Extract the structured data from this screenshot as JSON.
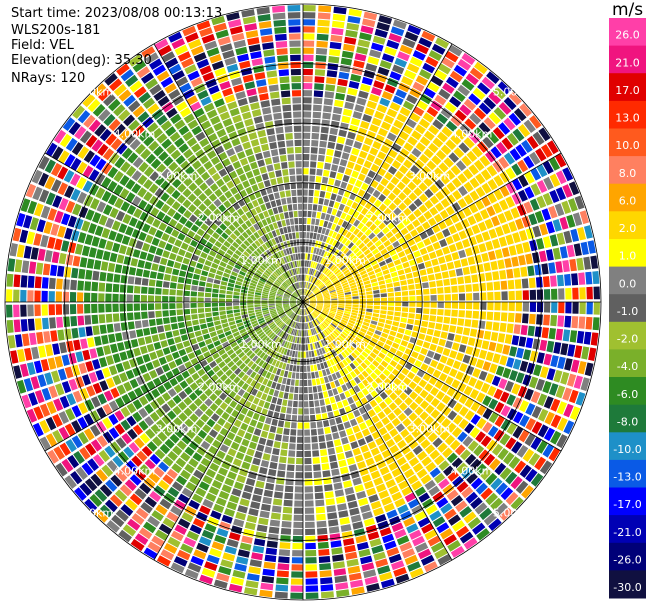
{
  "header": {
    "start_time": "Start time: 2023/08/08 00:13:13",
    "instrument": "WLS200s-181",
    "field": "Field: VEL",
    "elevation": "Elevation(deg): 35.30",
    "nrays": "NRays: 120"
  },
  "chart_data": {
    "type": "heatmap",
    "projection": "polar-ppi",
    "units": "m/s",
    "range_rings_km": [
      1.0,
      2.0,
      3.0,
      4.0,
      5.0
    ],
    "ring_labels": [
      "1.00km",
      "2.00km",
      "3.00km",
      "4.00km",
      "5.00km"
    ],
    "spoke_angles_deg": [
      0,
      30,
      60,
      90,
      120,
      150,
      180,
      210,
      240,
      270,
      300,
      330
    ],
    "n_rays": 120,
    "max_range_km": 5.0,
    "colorbar": {
      "title": "m/s",
      "ticks": [
        "26.0",
        "21.0",
        "17.0",
        "13.0",
        "10.0",
        "8.0",
        "6.0",
        "2.0",
        "1.0",
        "0.0",
        "-1.0",
        "-2.0",
        "-4.0",
        "-6.0",
        "-8.0",
        "-10.0",
        "-13.0",
        "-17.0",
        "-21.0",
        "-26.0",
        "-30.0"
      ],
      "colors": [
        "#ff3fa8",
        "#f0147f",
        "#e00000",
        "#ff2a00",
        "#ff5a1e",
        "#ff8060",
        "#ffa500",
        "#ffd700",
        "#ffff00",
        "#808080",
        "#606060",
        "#a0c030",
        "#7ab02a",
        "#2e8b22",
        "#1e7a3a",
        "#1e90c8",
        "#0a5ae6",
        "#0000ff",
        "#0000b4",
        "#000078",
        "#101040"
      ]
    }
  }
}
